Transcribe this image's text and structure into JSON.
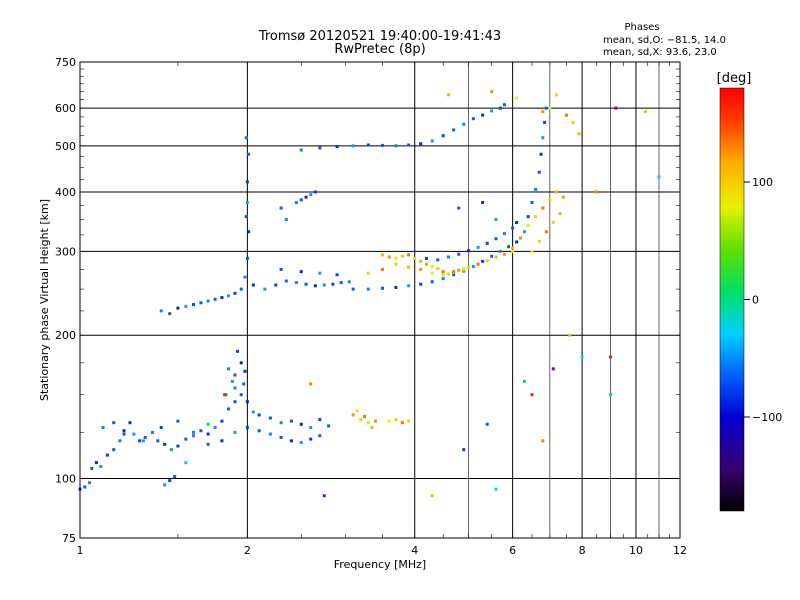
{
  "chart_data": {
    "type": "scatter",
    "title": "Tromsø 20120521 19:40:00-19:41:43",
    "subtitle": "RwPretec (8p)",
    "xlabel": "Frequency [MHz]",
    "ylabel": "Stationary phase Virtual Height [km]",
    "x_scale": "log",
    "y_scale": "log",
    "xlim": [
      1,
      12
    ],
    "ylim": [
      75,
      750
    ],
    "x_ticks": [
      1,
      2,
      4,
      6,
      8,
      10,
      12
    ],
    "x_tick_labels": [
      "1",
      "2",
      "4",
      "6",
      "8",
      "10",
      "12"
    ],
    "y_ticks": [
      75,
      100,
      200,
      300,
      400,
      500,
      600,
      750
    ],
    "y_tick_labels": [
      "75",
      "100",
      "200",
      "300",
      "400",
      "500",
      "600",
      "750"
    ],
    "grid": true,
    "stats": {
      "heading": "Phases",
      "line1": "mean, sd,O: −81.5, 14.0",
      "line2": "mean, sd,X:  93.6, 23.0"
    },
    "colorbar": {
      "label": "[deg]",
      "min": -180,
      "max": 180,
      "ticks": [
        100,
        0,
        -100
      ],
      "tick_labels": [
        "100",
        "0",
        "−100"
      ],
      "colormap": "rainbow"
    },
    "series": [
      {
        "values": [
          [
            1.0,
            95
          ],
          [
            1.02,
            96
          ],
          [
            1.04,
            98
          ],
          [
            1.05,
            105
          ],
          [
            1.07,
            108
          ],
          [
            1.09,
            106
          ],
          [
            1.12,
            112
          ],
          [
            1.15,
            115
          ],
          [
            1.18,
            120
          ],
          [
            1.2,
            124
          ],
          [
            1.23,
            131
          ],
          [
            1.25,
            124
          ],
          [
            1.28,
            120
          ],
          [
            1.31,
            122
          ],
          [
            1.35,
            125
          ],
          [
            1.38,
            120
          ],
          [
            1.42,
            118
          ],
          [
            1.46,
            115
          ],
          [
            1.5,
            117
          ],
          [
            1.55,
            121
          ],
          [
            1.6,
            123
          ],
          [
            1.65,
            126
          ],
          [
            1.7,
            124
          ],
          [
            1.75,
            128
          ],
          [
            1.8,
            132
          ],
          [
            1.85,
            140
          ],
          [
            1.9,
            155
          ],
          [
            1.95,
            150
          ],
          [
            2.0,
            145
          ],
          [
            2.05,
            138
          ],
          [
            2.1,
            136
          ],
          [
            2.2,
            134
          ],
          [
            2.3,
            131
          ],
          [
            2.4,
            132
          ],
          [
            2.5,
            130
          ],
          [
            2.6,
            128
          ],
          [
            2.7,
            133
          ],
          [
            2.8,
            129
          ],
          [
            1.1,
            128
          ],
          [
            1.15,
            131
          ],
          [
            1.2,
            126
          ],
          [
            1.3,
            120
          ],
          [
            1.4,
            128
          ],
          [
            1.5,
            132
          ],
          [
            1.6,
            125
          ],
          [
            1.7,
            118
          ],
          [
            1.8,
            120
          ],
          [
            1.9,
            125
          ],
          [
            2.0,
            128
          ],
          [
            2.1,
            126
          ],
          [
            2.2,
            124
          ],
          [
            2.3,
            122
          ],
          [
            2.4,
            120
          ],
          [
            2.5,
            119
          ],
          [
            2.6,
            121
          ],
          [
            2.7,
            123
          ],
          [
            1.85,
            170
          ],
          [
            1.9,
            165
          ],
          [
            1.95,
            175
          ],
          [
            1.88,
            160
          ],
          [
            1.92,
            185
          ],
          [
            1.97,
            158
          ],
          [
            1.83,
            150
          ],
          [
            1.9,
            145
          ],
          [
            1.98,
            168
          ],
          [
            1.42,
            97
          ],
          [
            1.45,
            99
          ],
          [
            1.48,
            101
          ],
          [
            1.4,
            225
          ],
          [
            1.45,
            222
          ],
          [
            1.5,
            228
          ],
          [
            1.55,
            230
          ],
          [
            1.6,
            232
          ],
          [
            1.65,
            234
          ],
          [
            1.7,
            236
          ],
          [
            1.75,
            238
          ],
          [
            1.8,
            240
          ],
          [
            1.85,
            242
          ],
          [
            1.9,
            245
          ],
          [
            1.95,
            250
          ],
          [
            1.98,
            265
          ],
          [
            2.0,
            290
          ],
          [
            2.01,
            330
          ],
          [
            2.0,
            380
          ],
          [
            2.0,
            420
          ],
          [
            2.01,
            480
          ],
          [
            1.99,
            520
          ],
          [
            1.99,
            355
          ],
          [
            2.05,
            255
          ],
          [
            2.15,
            250
          ],
          [
            2.25,
            255
          ],
          [
            2.35,
            260
          ],
          [
            2.45,
            258
          ],
          [
            2.55,
            256
          ],
          [
            2.65,
            254
          ],
          [
            2.75,
            255
          ],
          [
            2.85,
            256
          ],
          [
            2.95,
            258
          ],
          [
            3.05,
            259
          ],
          [
            2.3,
            275
          ],
          [
            2.5,
            272
          ],
          [
            2.7,
            270
          ],
          [
            2.9,
            268
          ],
          [
            3.1,
            250
          ],
          [
            3.3,
            250
          ],
          [
            3.5,
            251
          ],
          [
            3.7,
            252
          ],
          [
            3.9,
            254
          ],
          [
            4.1,
            256
          ],
          [
            4.3,
            259
          ],
          [
            4.5,
            263
          ],
          [
            4.7,
            268
          ],
          [
            4.9,
            273
          ],
          [
            5.1,
            279
          ],
          [
            5.3,
            286
          ],
          [
            5.5,
            293
          ],
          [
            5.7,
            300
          ],
          [
            5.9,
            307
          ],
          [
            6.1,
            314
          ],
          [
            6.2,
            320
          ],
          [
            4.2,
            290
          ],
          [
            4.4,
            288
          ],
          [
            4.6,
            292
          ],
          [
            4.8,
            296
          ],
          [
            5.0,
            301
          ],
          [
            5.2,
            306
          ],
          [
            5.4,
            312
          ],
          [
            5.6,
            319
          ],
          [
            5.8,
            327
          ],
          [
            6.0,
            336
          ],
          [
            6.1,
            345
          ],
          [
            6.3,
            330
          ],
          [
            6.4,
            355
          ],
          [
            6.5,
            380
          ],
          [
            6.6,
            405
          ],
          [
            6.7,
            440
          ],
          [
            6.75,
            480
          ],
          [
            6.8,
            520
          ],
          [
            6.85,
            560
          ],
          [
            6.9,
            600
          ],
          [
            2.5,
            490
          ],
          [
            2.7,
            495
          ],
          [
            2.9,
            498
          ],
          [
            3.1,
            500
          ],
          [
            3.3,
            502
          ],
          [
            3.5,
            501
          ],
          [
            3.7,
            500
          ],
          [
            3.9,
            502
          ],
          [
            4.1,
            505
          ],
          [
            4.3,
            512
          ],
          [
            4.5,
            525
          ],
          [
            4.7,
            540
          ],
          [
            4.9,
            555
          ],
          [
            5.1,
            570
          ],
          [
            5.3,
            580
          ],
          [
            5.5,
            592
          ],
          [
            5.7,
            600
          ],
          [
            5.8,
            610
          ],
          [
            2.45,
            380
          ],
          [
            2.5,
            385
          ],
          [
            2.55,
            390
          ],
          [
            2.6,
            395
          ],
          [
            2.65,
            400
          ],
          [
            2.3,
            370
          ],
          [
            2.35,
            350
          ],
          [
            4.8,
            370
          ],
          [
            5.3,
            380
          ],
          [
            5.6,
            350
          ],
          [
            4.9,
            115
          ],
          [
            5.4,
            130
          ]
        ]
      },
      {
        "values": [
          [
            3.5,
            295
          ],
          [
            3.6,
            292
          ],
          [
            3.7,
            290
          ],
          [
            3.8,
            293
          ],
          [
            3.9,
            295
          ],
          [
            4.0,
            290
          ],
          [
            4.1,
            286
          ],
          [
            4.2,
            282
          ],
          [
            4.3,
            279
          ],
          [
            4.4,
            276
          ],
          [
            4.5,
            272
          ],
          [
            4.6,
            269
          ],
          [
            4.7,
            271
          ],
          [
            4.8,
            274
          ],
          [
            4.9,
            276
          ],
          [
            5.0,
            278
          ],
          [
            5.2,
            282
          ],
          [
            5.4,
            287
          ],
          [
            5.6,
            292
          ],
          [
            5.8,
            296
          ],
          [
            6.0,
            300
          ],
          [
            3.3,
            270
          ],
          [
            3.5,
            275
          ],
          [
            3.7,
            282
          ],
          [
            3.9,
            278
          ],
          [
            4.1,
            275
          ],
          [
            4.3,
            270
          ],
          [
            4.5,
            268
          ],
          [
            4.7,
            272
          ],
          [
            4.9,
            274
          ],
          [
            6.0,
            305
          ],
          [
            6.2,
            320
          ],
          [
            6.4,
            340
          ],
          [
            6.6,
            355
          ],
          [
            6.8,
            370
          ],
          [
            7.0,
            385
          ],
          [
            7.2,
            400
          ],
          [
            7.4,
            390
          ],
          [
            6.5,
            300
          ],
          [
            6.7,
            315
          ],
          [
            6.9,
            330
          ],
          [
            7.1,
            345
          ],
          [
            7.3,
            360
          ],
          [
            6.8,
            590
          ],
          [
            7.0,
            600
          ],
          [
            7.2,
            640
          ],
          [
            7.5,
            580
          ],
          [
            7.7,
            560
          ],
          [
            7.9,
            530
          ],
          [
            3.1,
            136
          ],
          [
            3.15,
            139
          ],
          [
            3.2,
            133
          ],
          [
            3.25,
            135
          ],
          [
            3.3,
            131
          ],
          [
            3.35,
            128
          ],
          [
            3.4,
            132
          ],
          [
            3.6,
            132
          ],
          [
            3.7,
            133
          ],
          [
            3.8,
            131
          ],
          [
            3.9,
            132
          ],
          [
            4.6,
            640
          ],
          [
            5.5,
            650
          ],
          [
            6.1,
            630
          ]
        ]
      },
      {
        "values": [
          [
            1.55,
            108
          ],
          [
            1.7,
            130
          ],
          [
            1.82,
            150
          ],
          [
            2.6,
            158
          ],
          [
            2.75,
            92
          ],
          [
            4.3,
            92
          ],
          [
            5.6,
            95
          ],
          [
            6.3,
            160
          ],
          [
            6.5,
            150
          ],
          [
            6.8,
            120
          ],
          [
            7.1,
            170
          ],
          [
            7.6,
            200
          ],
          [
            8.0,
            180
          ],
          [
            9.0,
            150
          ],
          [
            9.0,
            180
          ],
          [
            8.5,
            400
          ],
          [
            9.2,
            600
          ],
          [
            10.4,
            590
          ],
          [
            11.0,
            430
          ]
        ]
      }
    ]
  }
}
